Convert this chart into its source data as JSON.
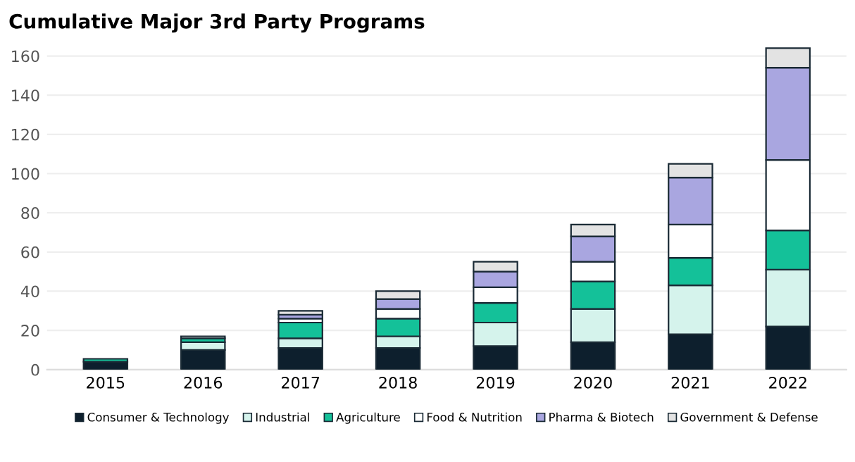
{
  "chart_data": {
    "type": "bar",
    "title": "Cumulative Major 3rd Party Programs",
    "stacked": true,
    "categories": [
      "2015",
      "2016",
      "2017",
      "2018",
      "2019",
      "2020",
      "2021",
      "2022"
    ],
    "ylim": [
      0,
      165
    ],
    "yticks": [
      0,
      20,
      40,
      60,
      80,
      100,
      120,
      140,
      160
    ],
    "grid": "y",
    "legend": "bottom",
    "series": [
      {
        "name": "Consumer & Technology",
        "color": "#0d1f2d",
        "values": [
          4,
          10,
          11,
          11,
          12,
          14,
          18,
          22
        ]
      },
      {
        "name": "Industrial",
        "color": "#d5f3ec",
        "values": [
          null,
          4,
          5,
          6,
          12,
          17,
          25,
          29
        ]
      },
      {
        "name": "Agriculture",
        "color": "#14c199",
        "values": [
          1.5,
          2,
          8,
          9,
          10,
          14,
          14,
          20
        ]
      },
      {
        "name": "Food & Nutrition",
        "color": "#ffffff",
        "values": [
          0,
          null,
          2,
          5,
          8,
          10,
          17,
          36
        ]
      },
      {
        "name": "Pharma & Biotech",
        "color": "#a9a6e0",
        "values": [
          0,
          null,
          2,
          5,
          8,
          13,
          24,
          47
        ]
      },
      {
        "name": "Government & Defense",
        "color": "#e3e3e3",
        "values": [
          null,
          1,
          2,
          4,
          5,
          6,
          7,
          10
        ]
      }
    ]
  }
}
